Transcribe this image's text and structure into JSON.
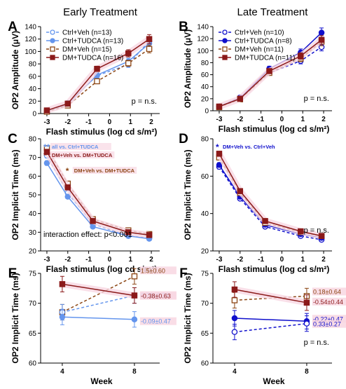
{
  "colors": {
    "ctrl_veh": "#6495ED",
    "ctrl_tudca": "#6495ED",
    "dm_veh": "#8B4513",
    "dm_tudca": "#8B1A1A",
    "late_ctrl": "#1010CC",
    "highlight": "#F8D7E2"
  },
  "chart_data": [
    {
      "id": "A",
      "type": "line",
      "title": "Early Treatment",
      "xlabel": "Flash stimulus (log cd s/m²)",
      "ylabel": "OP2 Amplitude (μV)",
      "x": [
        -3,
        -2,
        -0.6,
        0.9,
        1.9
      ],
      "xticks": [
        "-3",
        "-2",
        "-1",
        "0",
        "1",
        "2"
      ],
      "ylim": [
        0,
        140
      ],
      "yticks": [
        "0",
        "20",
        "40",
        "60",
        "80",
        "100",
        "120",
        "140"
      ],
      "legend": "top-left",
      "annotation": "p = n.s.",
      "series": [
        {
          "name": "Ctrl+Veh (n=13)",
          "values": [
            4,
            17,
            61,
            79,
            117
          ]
        },
        {
          "name": "Ctrl+TUDCA (n=13)",
          "values": [
            4,
            15,
            62,
            84,
            113
          ]
        },
        {
          "name": "DM+Veh (n=15)",
          "values": [
            3,
            13,
            52,
            81,
            104
          ]
        },
        {
          "name": "DM+TUDCA (n=16)",
          "values": [
            5,
            16,
            72,
            97,
            120
          ]
        }
      ]
    },
    {
      "id": "B",
      "type": "line",
      "title": "Late Treatment",
      "xlabel": "Flash stimulus (log cd s/m²)",
      "ylabel": "OP2 Amplitude (μV)",
      "x": [
        -3,
        -2,
        -0.6,
        0.9,
        1.9
      ],
      "xticks": [
        "-3",
        "-2",
        "-1",
        "0",
        "1",
        "2"
      ],
      "ylim": [
        0,
        140
      ],
      "yticks": [
        "0",
        "20",
        "40",
        "60",
        "80",
        "100",
        "120",
        "140"
      ],
      "legend": "top-left",
      "annotation": "p = n.s.",
      "series": [
        {
          "name": "Ctrl+Veh (n=10)",
          "values": [
            7,
            22,
            63,
            83,
            106
          ]
        },
        {
          "name": "Ctrl+TUDCA (n=8)",
          "values": [
            7,
            21,
            70,
            97,
            130
          ]
        },
        {
          "name": "DM+Veh (n=11)",
          "values": [
            6,
            19,
            63,
            87,
            115
          ]
        },
        {
          "name": "DM+TUDCA (n=11)",
          "values": [
            7,
            20,
            66,
            91,
            118
          ]
        }
      ]
    },
    {
      "id": "C",
      "type": "line",
      "xlabel": "Flash stimulus (log cd s/m²)",
      "ylabel": "OP2 Implicit Time (ms)",
      "x": [
        -3,
        -2,
        -0.8,
        0.9,
        1.9
      ],
      "xticks": [
        "-3",
        "-2",
        "-1",
        "0",
        "1",
        "2"
      ],
      "ylim": [
        20,
        80
      ],
      "yticks": [
        "20",
        "30",
        "40",
        "50",
        "60",
        "70",
        "80"
      ],
      "annotation": "interaction effect: p<0.001",
      "notes": [
        "all vs. Ctrl+TUDCA",
        "DM+Veh vs. DM+TUDCA",
        "DM+Veh vs. DM+TUDCA"
      ],
      "series": [
        {
          "name": "Ctrl+Veh",
          "values": [
            71,
            51,
            34.5,
            28,
            27
          ]
        },
        {
          "name": "Ctrl+TUDCA",
          "values": [
            67,
            49,
            33,
            28,
            26.5
          ]
        },
        {
          "name": "DM+Veh",
          "values": [
            75,
            56,
            37,
            31,
            29
          ]
        },
        {
          "name": "DM+TUDCA",
          "values": [
            73,
            54,
            36,
            30,
            28.5
          ]
        }
      ]
    },
    {
      "id": "D",
      "type": "line",
      "xlabel": "Flash stimulus (log cd s/m²)",
      "ylabel": "OP2 Implicit Time (ms)",
      "x": [
        -3,
        -2,
        -0.8,
        0.9,
        1.9
      ],
      "xticks": [
        "-3",
        "-2",
        "-1",
        "0",
        "1",
        "2"
      ],
      "ylim": [
        20,
        80
      ],
      "yticks": [
        "20",
        "40",
        "60",
        "80"
      ],
      "annotation": "p = n.s.",
      "notes": [
        "DM+Veh vs. Ctrl+Veh"
      ],
      "series": [
        {
          "name": "Ctrl+Veh",
          "values": [
            65,
            48,
            33,
            28,
            26
          ]
        },
        {
          "name": "Ctrl+TUDCA",
          "values": [
            66,
            49,
            34,
            29,
            27
          ]
        },
        {
          "name": "DM+Veh",
          "values": [
            70,
            51,
            35,
            30,
            28
          ]
        },
        {
          "name": "DM+TUDCA",
          "values": [
            72,
            52,
            36,
            30.5,
            28
          ]
        }
      ]
    },
    {
      "id": "E",
      "type": "line",
      "xlabel": "Week",
      "ylabel": "OP2 Implicit Time (ms)",
      "x": [
        4,
        8
      ],
      "xticks": [
        "4",
        "8"
      ],
      "ylim": [
        60,
        75
      ],
      "yticks": [
        "60",
        "65",
        "70",
        "75"
      ],
      "series": [
        {
          "name": "DM+Veh",
          "values": [
            68.5,
            74.5
          ],
          "label": "1.5±0.60"
        },
        {
          "name": "Ctrl+Veh",
          "values": [
            68.5,
            71.3
          ],
          "label": "0.72±0.34"
        },
        {
          "name": "DM+TUDCA",
          "values": [
            73.2,
            71.3
          ],
          "label": "-0.38±0.63"
        },
        {
          "name": "Ctrl+TUDCA",
          "values": [
            67.7,
            67.3
          ],
          "label": "-0.09±0.47"
        }
      ]
    },
    {
      "id": "F",
      "type": "line",
      "xlabel": "Week",
      "ylabel": "OP2 Implicit Time (ms)",
      "x": [
        4,
        8
      ],
      "xticks": [
        "4",
        "8"
      ],
      "ylim": [
        60,
        75
      ],
      "yticks": [
        "60",
        "65",
        "70",
        "75"
      ],
      "annotation": "p = n.s.",
      "series": [
        {
          "name": "DM+Veh",
          "values": [
            70.5,
            71.2
          ],
          "label": "0.18±0.64"
        },
        {
          "name": "DM+TUDCA",
          "values": [
            72.3,
            70.1
          ],
          "label": "-0.54±0.44"
        },
        {
          "name": "Ctrl+TUDCA",
          "values": [
            67.5,
            67.0
          ],
          "label": "-0.22±0.47"
        },
        {
          "name": "Ctrl+Veh",
          "values": [
            65.2,
            66.6
          ],
          "label": "0.33±0.27"
        }
      ]
    }
  ]
}
